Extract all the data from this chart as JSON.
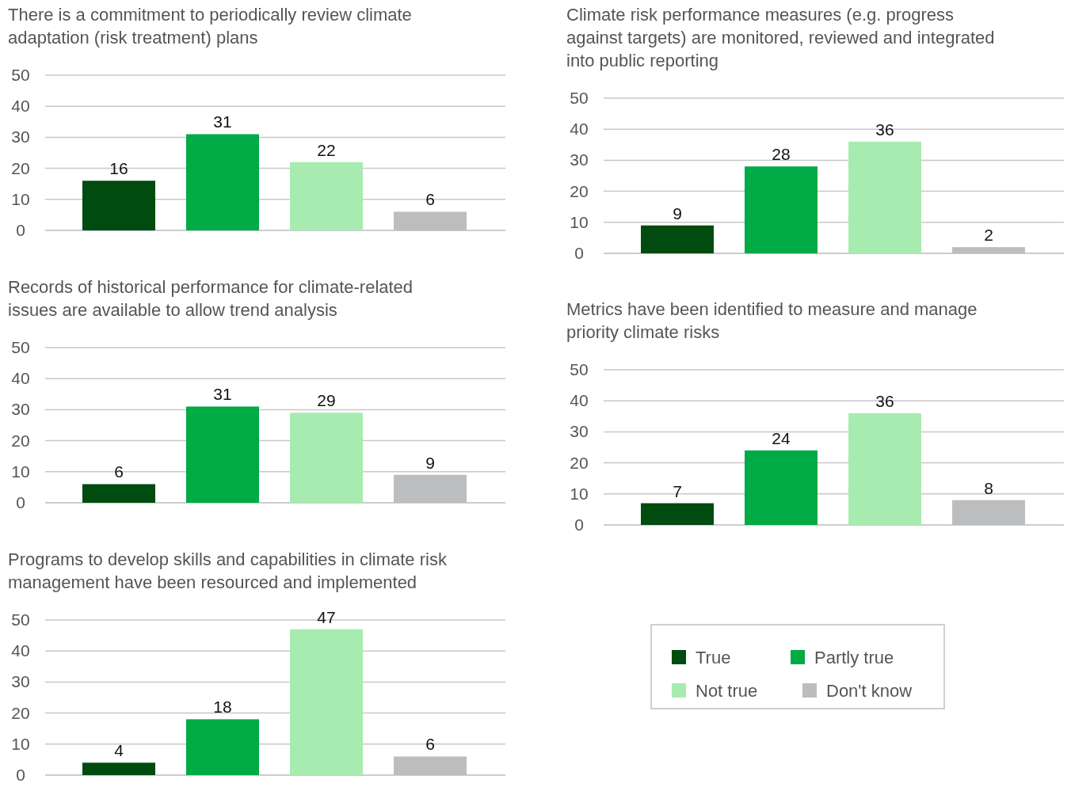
{
  "chart_data": [
    {
      "type": "bar",
      "title": "There is a commitment to periodically review climate adaptation (risk treatment) plans",
      "categories": [
        null
      ],
      "series": [
        {
          "color": "#004b0f",
          "values": [
            16
          ]
        },
        {
          "color": "#00aa45",
          "values": [
            31
          ]
        },
        {
          "color": "#a8ebb0",
          "values": [
            22
          ]
        },
        {
          "color": "#bcbdbf",
          "values": [
            6
          ]
        }
      ],
      "ylim": [
        0,
        50
      ],
      "yticks": [
        0,
        10,
        20,
        30,
        40,
        50
      ],
      "grid": "y",
      "data_labels": true,
      "legend": false
    },
    {
      "type": "bar",
      "title": "Climate risk performance measures (e.g. progress against targets) are monitored, reviewed and integrated into public reporting",
      "categories": [
        null
      ],
      "series": [
        {
          "color": "#004b0f",
          "values": [
            9
          ]
        },
        {
          "color": "#00aa45",
          "values": [
            28
          ]
        },
        {
          "color": "#a8ebb0",
          "values": [
            36
          ]
        },
        {
          "color": "#bcbdbf",
          "values": [
            2
          ]
        }
      ],
      "ylim": [
        0,
        50
      ],
      "yticks": [
        0,
        10,
        20,
        30,
        40,
        50
      ],
      "grid": "y",
      "data_labels": true,
      "legend": false
    },
    {
      "type": "bar",
      "title": "Records of historical performance for climate-related issues are available to allow trend analysis",
      "categories": [
        null
      ],
      "series": [
        {
          "color": "#004b0f",
          "values": [
            6
          ]
        },
        {
          "color": "#00aa45",
          "values": [
            31
          ]
        },
        {
          "color": "#a8ebb0",
          "values": [
            29
          ]
        },
        {
          "color": "#bcbdbf",
          "values": [
            9
          ]
        }
      ],
      "ylim": [
        0,
        50
      ],
      "yticks": [
        0,
        10,
        20,
        30,
        40,
        50
      ],
      "grid": "y",
      "data_labels": true,
      "legend": false
    },
    {
      "type": "bar",
      "title": "Metrics have been identified to measure and manage priority climate risks",
      "categories": [
        null
      ],
      "series": [
        {
          "name": "True",
          "color": "#004b0f",
          "values": [
            7
          ]
        },
        {
          "name": "Partly true",
          "color": "#00aa45",
          "values": [
            24
          ]
        },
        {
          "name": "Not true",
          "color": "#a8ebb0",
          "values": [
            36
          ]
        },
        {
          "name": "Don't know",
          "color": "#bcbdbf",
          "values": [
            8
          ]
        }
      ],
      "ylim": [
        0,
        50
      ],
      "yticks": [
        0,
        10,
        20,
        30,
        40,
        50
      ],
      "grid": "y",
      "data_labels": true,
      "legend": "bottom"
    },
    {
      "type": "bar",
      "title": "Programs to develop skills and capabilities in climate risk management have been resourced and implemented",
      "categories": [
        null
      ],
      "series": [
        {
          "color": "#004b0f",
          "values": [
            4
          ]
        },
        {
          "color": "#00aa45",
          "values": [
            18
          ]
        },
        {
          "color": "#a8ebb0",
          "values": [
            47
          ]
        },
        {
          "color": "#bcbdbf",
          "values": [
            6
          ]
        }
      ],
      "ylim": [
        0,
        50
      ],
      "yticks": [
        0,
        10,
        20,
        30,
        40,
        50
      ],
      "grid": "y",
      "data_labels": true,
      "legend": false
    }
  ]
}
